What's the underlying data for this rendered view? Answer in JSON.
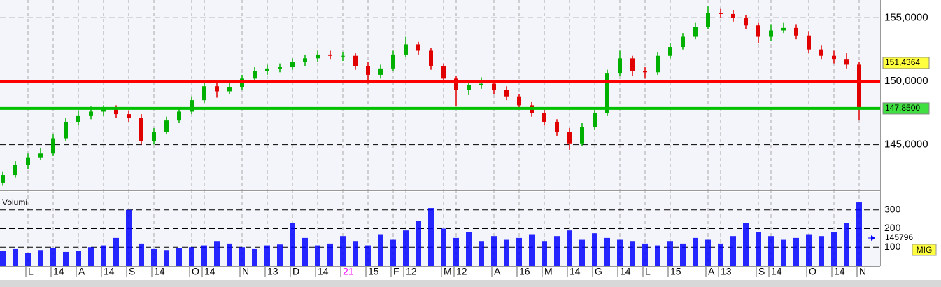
{
  "chart_data": [
    {
      "type": "candlestick",
      "open": [
        142.0,
        142.6,
        143.4,
        144.0,
        144.3,
        145.5,
        146.8,
        147.3,
        147.6,
        147.8,
        147.4,
        147.1,
        145.3,
        146.0,
        146.9,
        147.6,
        148.5,
        149.6,
        149.2,
        149.5,
        150.2,
        150.8,
        151.0,
        151.1,
        151.5,
        151.8,
        152.1,
        152.0,
        152.0,
        151.2,
        150.5,
        151.0,
        152.1,
        152.9,
        152.4,
        151.2,
        150.2,
        149.3,
        149.7,
        149.8,
        149.3,
        148.8,
        148.1,
        147.5,
        146.8,
        146.0,
        145.1,
        146.4,
        147.5,
        150.6,
        151.8,
        150.8,
        150.7,
        152.0,
        152.7,
        153.5,
        154.3,
        155.4,
        155.3,
        155.0,
        154.4,
        153.5,
        154.0,
        154.2,
        153.6,
        152.5,
        152.0,
        151.7,
        151.3
      ],
      "high": [
        142.9,
        143.7,
        144.3,
        144.7,
        145.8,
        147.1,
        147.7,
        148.0,
        148.1,
        148.1,
        147.7,
        147.4,
        146.3,
        147.2,
        147.9,
        148.8,
        150.0,
        149.9,
        149.9,
        150.5,
        151.1,
        151.3,
        151.4,
        151.8,
        152.1,
        152.4,
        152.4,
        152.3,
        152.2,
        151.5,
        151.3,
        152.4,
        153.5,
        153.1,
        152.6,
        151.4,
        150.4,
        150.0,
        150.3,
        150.1,
        149.6,
        149.0,
        148.4,
        147.8,
        147.0,
        146.3,
        146.7,
        147.8,
        150.9,
        152.4,
        152.0,
        151.1,
        152.3,
        153.0,
        153.8,
        154.6,
        155.9,
        155.7,
        155.6,
        155.2,
        154.6,
        154.5,
        154.6,
        154.5,
        153.9,
        152.8,
        152.4,
        152.2,
        151.5
      ],
      "low": [
        141.8,
        142.4,
        143.1,
        143.8,
        144.1,
        145.3,
        146.5,
        147.0,
        147.3,
        147.1,
        146.8,
        145.0,
        145.0,
        145.8,
        146.7,
        147.4,
        148.3,
        148.7,
        149.0,
        149.3,
        150.0,
        150.5,
        150.7,
        150.9,
        151.2,
        151.5,
        151.7,
        151.6,
        150.9,
        149.8,
        150.2,
        150.8,
        151.9,
        152.1,
        150.9,
        149.9,
        148.0,
        148.9,
        149.4,
        149.0,
        148.5,
        147.8,
        147.2,
        146.5,
        145.7,
        144.6,
        144.9,
        146.2,
        147.3,
        150.4,
        150.4,
        150.2,
        150.5,
        151.8,
        152.5,
        153.3,
        154.1,
        155.0,
        154.7,
        154.1,
        153.0,
        153.2,
        153.8,
        153.3,
        152.2,
        151.7,
        151.4,
        151.0,
        146.9
      ],
      "close": [
        142.6,
        143.4,
        144.0,
        144.3,
        145.5,
        146.8,
        147.3,
        147.6,
        147.8,
        147.4,
        147.1,
        145.3,
        146.0,
        146.9,
        147.6,
        148.5,
        149.6,
        149.2,
        149.5,
        150.2,
        150.8,
        151.0,
        151.1,
        151.5,
        151.8,
        152.1,
        152.0,
        152.0,
        151.2,
        150.5,
        151.0,
        152.1,
        152.9,
        152.4,
        151.2,
        150.2,
        149.3,
        149.7,
        149.8,
        149.3,
        148.8,
        148.1,
        147.5,
        146.8,
        146.0,
        145.1,
        146.4,
        147.5,
        150.6,
        151.8,
        150.8,
        150.7,
        152.0,
        152.7,
        153.5,
        154.3,
        155.4,
        155.3,
        155.0,
        154.4,
        153.5,
        154.0,
        154.2,
        153.6,
        152.5,
        152.0,
        151.7,
        151.3,
        147.9
      ],
      "up_color": "#00b000",
      "down_color": "#e00000",
      "ylim": [
        141.5,
        156.4
      ],
      "yticks": [
        {
          "value": 145,
          "label": "145,0000"
        },
        {
          "value": 150,
          "label": "150,0000"
        },
        {
          "value": 155,
          "label": "155,0000"
        }
      ],
      "hlines": [
        {
          "value": 150.0,
          "color": "#ff0000"
        },
        {
          "value": 147.85,
          "color": "#00c000"
        }
      ],
      "price_labels": [
        {
          "value": 151.4364,
          "label": "151,4364",
          "color": "#ffff40"
        },
        {
          "value": 147.85,
          "label": "147,8500",
          "color": "#40e040"
        }
      ],
      "grid": true
    },
    {
      "type": "bar",
      "title": "Volumi",
      "categories": [
        null,
        null,
        "L",
        null,
        "14",
        null,
        "A",
        null,
        "14",
        null,
        "S",
        null,
        "14",
        null,
        null,
        "O",
        "14",
        null,
        null,
        "N",
        null,
        "13",
        null,
        "D",
        null,
        "14",
        null,
        "21",
        null,
        "15",
        null,
        "F",
        "12",
        null,
        null,
        "M",
        "12",
        null,
        null,
        "A",
        null,
        "16",
        null,
        "M",
        null,
        "14",
        null,
        "G",
        null,
        "14",
        null,
        "L",
        null,
        "15",
        null,
        null,
        "A",
        "13",
        null,
        null,
        "S",
        "14",
        null,
        null,
        "O",
        null,
        "14",
        null,
        "N"
      ],
      "values": [
        80,
        90,
        70,
        85,
        95,
        75,
        80,
        100,
        110,
        150,
        300,
        120,
        90,
        85,
        95,
        100,
        110,
        130,
        120,
        100,
        90,
        110,
        115,
        230,
        150,
        110,
        120,
        160,
        130,
        110,
        170,
        140,
        190,
        240,
        310,
        200,
        150,
        180,
        130,
        160,
        140,
        150,
        170,
        130,
        160,
        190,
        140,
        175,
        150,
        140,
        130,
        120,
        110,
        130,
        120,
        150,
        140,
        120,
        160,
        230,
        180,
        160,
        140,
        150,
        170,
        160,
        180,
        230,
        340
      ],
      "color": "#0000ff",
      "ylim": [
        0,
        400
      ],
      "yticks": [
        100,
        200,
        300
      ],
      "readout": "145796",
      "badge": "MIG",
      "grid": true
    }
  ]
}
